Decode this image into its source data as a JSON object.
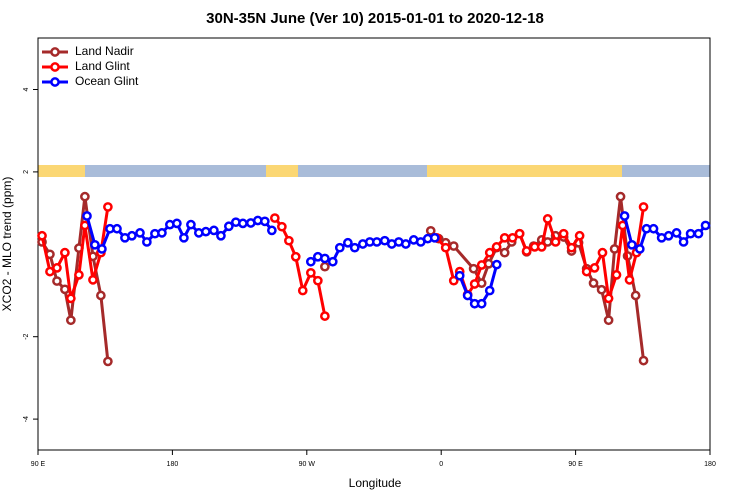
{
  "chart_data": {
    "type": "line",
    "title": "30N-35N June (Ver 10)   2015-01-01 to 2020-12-18",
    "x_label": "Longitude",
    "y_label": "XCO2 - MLO trend (ppm)",
    "xlim": [
      90,
      540
    ],
    "xticks": [
      {
        "value": 90,
        "label": "90 E"
      },
      {
        "value": 180,
        "label": "180"
      },
      {
        "value": 270,
        "label": "90 W"
      },
      {
        "value": 360,
        "label": "0"
      },
      {
        "value": 450,
        "label": "90 E"
      },
      {
        "value": 540,
        "label": "180"
      }
    ],
    "ylim": [
      -4.75,
      5.25
    ],
    "yticks": [
      -4,
      -2,
      2,
      4
    ],
    "legend": "top-left",
    "series": [
      {
        "name": "Land Nadir",
        "color": "#a52a2a",
        "x": [
          92.7,
          98,
          102.7,
          108,
          112,
          117.4,
          121.4,
          126.8,
          132.1,
          136.8,
          null,
          282.1,
          null,
          353,
          358.3,
          363,
          368.4,
          381.7,
          387.1,
          391.8,
          397.1,
          402.5,
          407.2,
          412.5,
          417.2,
          421.9,
          427.3,
          431.3,
          436.6,
          442,
          447.3,
          452,
          457.4,
          462,
          467.4,
          472.1,
          476.1,
          480.1,
          484.8,
          490.2,
          495.5
        ],
        "values": [
          0.3,
          0,
          -0.65,
          -0.85,
          -1.6,
          0.15,
          1.4,
          -0.05,
          -1.0,
          -2.6,
          null,
          -0.3,
          null,
          0.57,
          0.38,
          0.28,
          0.2,
          -0.35,
          -0.7,
          -0.23,
          0.16,
          0.04,
          0.3,
          0.5,
          0.06,
          0.2,
          0.35,
          0.3,
          0.45,
          0.42,
          0.08,
          0.28,
          -0.35,
          -0.7,
          -0.86,
          -1.6,
          0.13,
          1.4,
          -0.04,
          -1.0,
          -2.58
        ]
      },
      {
        "name": "Land Glint",
        "color": "#ff0000",
        "x": [
          92.7,
          98,
          102.7,
          108,
          112,
          117.4,
          121.4,
          126.8,
          132.1,
          136.8,
          null,
          248.6,
          253.3,
          258,
          262.6,
          267.3,
          272.7,
          277.4,
          282.1,
          null,
          357,
          363,
          368.4,
          372.4,
          377.7,
          382.4,
          387.1,
          392.5,
          397.1,
          402.5,
          407.8,
          412.5,
          417.2,
          422.6,
          427.3,
          431.3,
          436.6,
          442,
          447.3,
          452.7,
          457.4,
          462.7,
          468,
          472.1,
          477.4,
          481.5,
          486.1,
          490.8,
          495.5
        ],
        "values": [
          0.45,
          -0.42,
          -0.33,
          0.04,
          -1.07,
          -0.5,
          0.7,
          -0.62,
          0.04,
          1.15,
          null,
          0.88,
          0.67,
          0.33,
          -0.06,
          -0.88,
          -0.45,
          -0.64,
          -1.5,
          null,
          0.4,
          0.16,
          -0.64,
          -0.42,
          -0.98,
          -0.72,
          -0.26,
          0.04,
          0.18,
          0.4,
          0.4,
          0.5,
          0.08,
          0.18,
          0.18,
          0.86,
          0.3,
          0.5,
          0.16,
          0.45,
          -0.42,
          -0.33,
          0.04,
          -1.07,
          -0.5,
          0.7,
          -0.62,
          0.04,
          1.15
        ]
      },
      {
        "name": "Ocean Glint",
        "color": "#0000ff",
        "x": [
          122.8,
          128.1,
          132.8,
          138.2,
          142.9,
          148.2,
          152.9,
          158.3,
          162.9,
          168.3,
          173,
          178.3,
          183,
          187.7,
          192.4,
          197.7,
          202.4,
          207.8,
          212.5,
          217.8,
          222.5,
          227.2,
          232.5,
          237.2,
          241.9,
          246.6,
          null,
          272.7,
          277.4,
          282.1,
          287.4,
          292.1,
          297.5,
          302.1,
          307.5,
          312.2,
          316.9,
          322.2,
          326.9,
          331.6,
          336.3,
          341.6,
          346.3,
          351,
          355.7,
          null,
          372.4,
          377.7,
          382.4,
          387.1,
          392.5,
          397.2,
          null,
          482.8,
          487.7,
          493,
          497.5,
          502.2,
          507.6,
          512.3,
          517.6,
          522.3,
          527,
          532.3,
          537
        ],
        "values": [
          0.93,
          0.23,
          0.13,
          0.62,
          0.62,
          0.4,
          0.45,
          0.52,
          0.3,
          0.5,
          0.52,
          0.72,
          0.75,
          0.4,
          0.72,
          0.52,
          0.55,
          0.58,
          0.45,
          0.68,
          0.78,
          0.75,
          0.76,
          0.82,
          0.8,
          0.58,
          null,
          -0.18,
          -0.06,
          -0.1,
          -0.18,
          0.16,
          0.28,
          0.16,
          0.25,
          0.3,
          0.3,
          0.33,
          0.25,
          0.3,
          0.25,
          0.35,
          0.3,
          0.38,
          0.4,
          null,
          -0.52,
          -1.0,
          -1.2,
          -1.2,
          -0.88,
          -0.25,
          null,
          0.93,
          0.23,
          0.13,
          0.62,
          0.62,
          0.4,
          0.45,
          0.52,
          0.3,
          0.5,
          0.5,
          0.7
        ]
      }
    ]
  }
}
